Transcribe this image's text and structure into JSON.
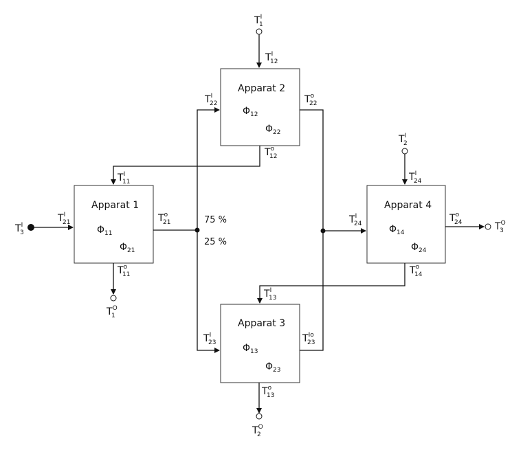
{
  "apparatus": {
    "a1": {
      "title": "Apparat 1",
      "phi_a": {
        "sym": "Φ",
        "sub": "11"
      },
      "phi_b": {
        "sym": "Φ",
        "sub": "21"
      }
    },
    "a2": {
      "title": "Apparat 2",
      "phi_a": {
        "sym": "Φ",
        "sub": "12"
      },
      "phi_b": {
        "sym": "Φ",
        "sub": "22"
      }
    },
    "a3": {
      "title": "Apparat 3",
      "phi_a": {
        "sym": "Φ",
        "sub": "13"
      },
      "phi_b": {
        "sym": "Φ",
        "sub": "23"
      }
    },
    "a4": {
      "title": "Apparat 4",
      "phi_a": {
        "sym": "Φ",
        "sub": "14"
      },
      "phi_b": {
        "sym": "Φ",
        "sub": "24"
      }
    }
  },
  "split": {
    "upper": "75 %",
    "lower": "25 %"
  },
  "temps": {
    "t1_in": {
      "main": "T",
      "sub": "1",
      "sup": "I"
    },
    "t12_in": {
      "main": "T",
      "sub": "12",
      "sup": "I"
    },
    "t22_in": {
      "main": "T",
      "sub": "22",
      "sup": "I"
    },
    "t22_out": {
      "main": "T",
      "sub": "22",
      "sup": "o"
    },
    "t12_out": {
      "main": "T",
      "sub": "12",
      "sup": "o"
    },
    "t11_in": {
      "main": "T",
      "sub": "11",
      "sup": "I"
    },
    "t3_in": {
      "main": "T",
      "sub": "3",
      "sup": "I"
    },
    "t21_in": {
      "main": "T",
      "sub": "21",
      "sup": "I"
    },
    "t21_out": {
      "main": "T",
      "sub": "21",
      "sup": "o"
    },
    "t11_out": {
      "main": "T",
      "sub": "11",
      "sup": "o"
    },
    "t1_out": {
      "main": "T",
      "sub": "1",
      "sup": "O"
    },
    "t2_in": {
      "main": "T",
      "sub": "2",
      "sup": "I"
    },
    "t24_in": {
      "main": "T",
      "sub": "24",
      "sup": "I"
    },
    "t24_in_b": {
      "main": "T",
      "sub": "24",
      "sup": "I"
    },
    "t24_out": {
      "main": "T",
      "sub": "24",
      "sup": "o"
    },
    "t3_out": {
      "main": "T",
      "sub": "3",
      "sup": "O"
    },
    "t14_out": {
      "main": "T",
      "sub": "14",
      "sup": "o"
    },
    "t13_in": {
      "main": "T",
      "sub": "13",
      "sup": "I"
    },
    "t23_in": {
      "main": "T",
      "sub": "23",
      "sup": "I"
    },
    "t23_out": {
      "main": "T",
      "sub": "23",
      "sup": "Io"
    },
    "t13_out": {
      "main": "T",
      "sub": "13",
      "sup": "o"
    },
    "t2_out": {
      "main": "T",
      "sub": "2",
      "sup": "O"
    }
  }
}
